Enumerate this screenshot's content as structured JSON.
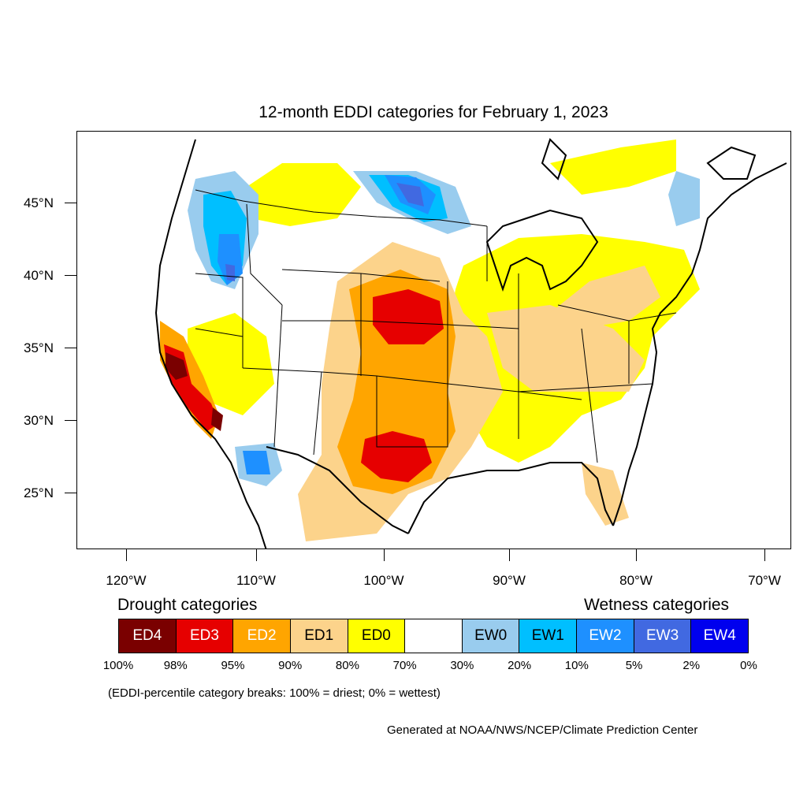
{
  "title": "12-month EDDI categories for February 1, 2023",
  "lat_labels": [
    "45°N",
    "40°N",
    "35°N",
    "30°N",
    "25°N"
  ],
  "lon_labels": [
    "120°W",
    "110°W",
    "100°W",
    "90°W",
    "80°W",
    "70°W"
  ],
  "legend": {
    "drought_heading": "Drought categories",
    "wetness_heading": "Wetness categories",
    "categories": [
      {
        "label": "ED4",
        "color": "#7a0000",
        "text_color": "#ffffff"
      },
      {
        "label": "ED3",
        "color": "#e60000",
        "text_color": "#ffffff"
      },
      {
        "label": "ED2",
        "color": "#ffa500",
        "text_color": "#ffffff"
      },
      {
        "label": "ED1",
        "color": "#fcd38b",
        "text_color": "#000000"
      },
      {
        "label": "ED0",
        "color": "#ffff00",
        "text_color": "#000000"
      },
      {
        "label": "",
        "color": "#ffffff",
        "text_color": "#000000"
      },
      {
        "label": "EW0",
        "color": "#99ccee",
        "text_color": "#000000"
      },
      {
        "label": "EW1",
        "color": "#00bfff",
        "text_color": "#000000"
      },
      {
        "label": "EW2",
        "color": "#1e90ff",
        "text_color": "#ffffff"
      },
      {
        "label": "EW3",
        "color": "#4169e1",
        "text_color": "#ffffff"
      },
      {
        "label": "EW4",
        "color": "#0000ee",
        "text_color": "#ffffff"
      }
    ],
    "percentiles": [
      "100%",
      "98%",
      "95%",
      "90%",
      "80%",
      "70%",
      "30%",
      "20%",
      "10%",
      "5%",
      "2%",
      "0%"
    ]
  },
  "note": "(EDDI-percentile category breaks: 100% = driest; 0% = wettest)",
  "credit": "Generated at NOAA/NWS/NCEP/Climate Prediction Center"
}
